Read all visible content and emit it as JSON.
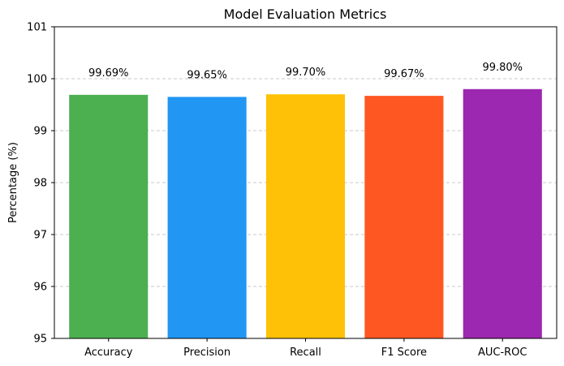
{
  "chart_data": {
    "type": "bar",
    "title": "Model Evaluation Metrics",
    "xlabel": "",
    "ylabel": "Percentage (%)",
    "categories": [
      "Accuracy",
      "Precision",
      "Recall",
      "F1 Score",
      "AUC-ROC"
    ],
    "values": [
      99.69,
      99.65,
      99.7,
      99.67,
      99.8
    ],
    "data_labels": [
      "99.69%",
      "99.65%",
      "99.70%",
      "99.67%",
      "99.80%"
    ],
    "colors": [
      "#4caf50",
      "#2196f3",
      "#ffc107",
      "#ff5722",
      "#9c27b0"
    ],
    "ylim": [
      95,
      101
    ],
    "yticks": [
      95,
      96,
      97,
      98,
      99,
      100,
      101
    ],
    "grid": "y-dashed",
    "legend": "none"
  }
}
